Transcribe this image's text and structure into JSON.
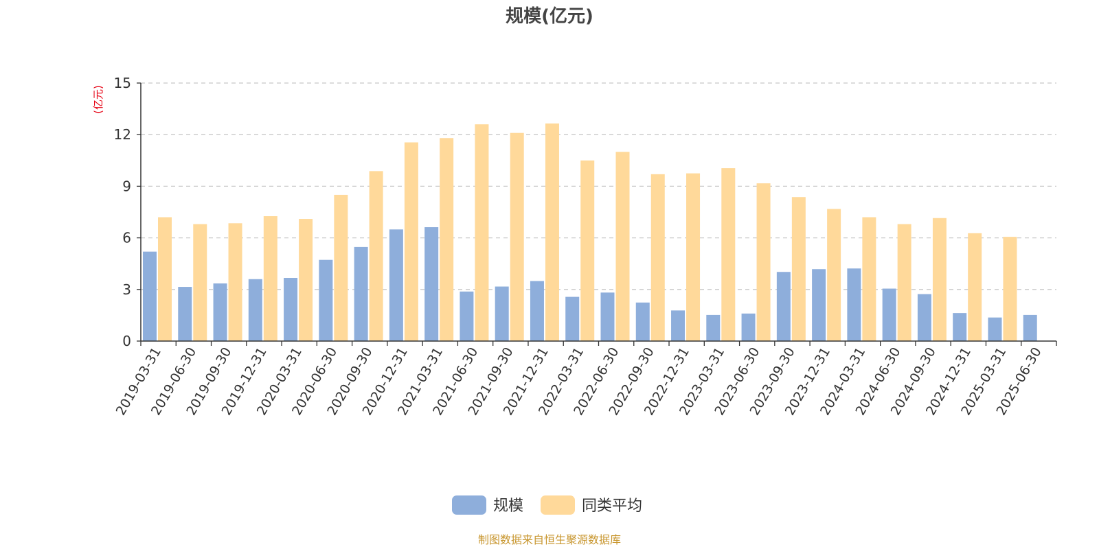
{
  "colors": {
    "scale": "#8eaedb",
    "avg": "#ffd99a",
    "unit": "#e60012",
    "source": "#c8962e"
  },
  "chart_data": {
    "type": "bar",
    "title": "规模(亿元)",
    "ylabel": "(亿元)",
    "ylim": [
      0,
      15
    ],
    "yticks": [
      "0",
      "3",
      "6",
      "9",
      "12",
      "15"
    ],
    "grid": true,
    "legend_position": "bottom-center",
    "categories": [
      "2019-03-31",
      "2019-06-30",
      "2019-09-30",
      "2019-12-31",
      "2020-03-31",
      "2020-06-30",
      "2020-09-30",
      "2020-12-31",
      "2021-03-31",
      "2021-06-30",
      "2021-09-30",
      "2021-12-31",
      "2022-03-31",
      "2022-06-30",
      "2022-09-30",
      "2022-12-31",
      "2023-03-31",
      "2023-06-30",
      "2023-09-30",
      "2023-12-31",
      "2024-03-31",
      "2024-06-30",
      "2024-09-30",
      "2024-12-31",
      "2025-03-31",
      "2025-06-30"
    ],
    "series": [
      {
        "name": "规模",
        "color": "#8eaedb",
        "values": [
          5.2,
          3.15,
          3.35,
          3.6,
          3.67,
          4.72,
          5.47,
          6.49,
          6.62,
          2.88,
          3.17,
          3.49,
          2.57,
          2.82,
          2.24,
          1.78,
          1.52,
          1.6,
          4.02,
          4.18,
          4.22,
          3.05,
          2.73,
          1.63,
          1.37,
          1.52
        ]
      },
      {
        "name": "同类平均",
        "color": "#ffd99a",
        "values": [
          7.2,
          6.8,
          6.85,
          7.26,
          7.1,
          8.5,
          9.88,
          11.55,
          11.8,
          12.6,
          12.1,
          12.65,
          10.5,
          11.0,
          9.7,
          9.75,
          10.05,
          9.17,
          8.37,
          7.68,
          7.2,
          6.8,
          7.15,
          6.27,
          6.06,
          null
        ]
      }
    ]
  },
  "footer": {
    "source": "制图数据来自恒生聚源数据库"
  }
}
